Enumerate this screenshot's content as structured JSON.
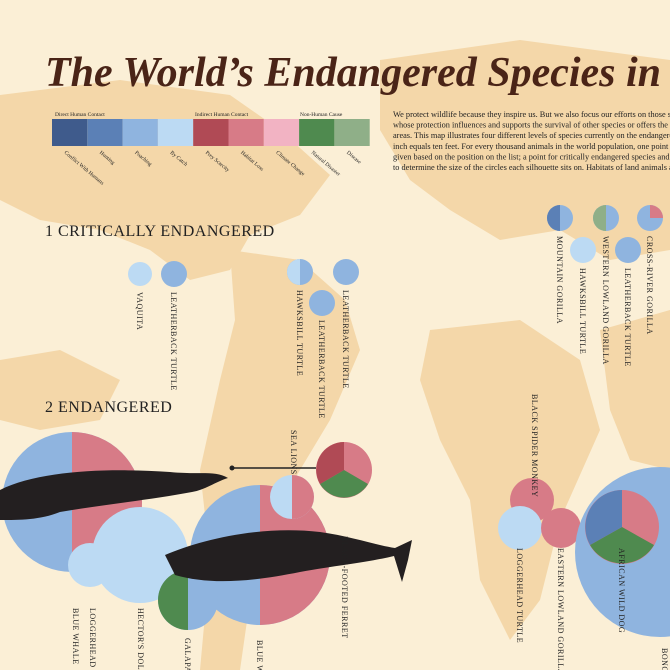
{
  "title": "The World’s Endangered Species in Fo",
  "legend": {
    "groups": [
      "Direct Human Contact",
      "Indirect Human Contact",
      "Non-Human Cause"
    ],
    "items": [
      {
        "label": "Conflict With Humans",
        "color": "#3f5b8c"
      },
      {
        "label": "Hunting",
        "color": "#5b80b6"
      },
      {
        "label": "Poaching",
        "color": "#8fb4df"
      },
      {
        "label": "By Catch",
        "color": "#bcdaf3"
      },
      {
        "label": "Prey Scarcity",
        "color": "#b04a55"
      },
      {
        "label": "Habitat Loss",
        "color": "#d77b87"
      },
      {
        "label": "Climate Change",
        "color": "#f2b3c3"
      },
      {
        "label": "Natural Disaster",
        "color": "#4f8a4f"
      },
      {
        "label": "Disease",
        "color": "#8faf88"
      }
    ]
  },
  "description": [
    "We protect wildlife because they inspire us. But we also focus our efforts on those species",
    "whose protection influences and supports the survival of other species or offers the oppo",
    "areas. This map illustrates four different levels of species currently on the endangered list.",
    "inch equals ten feet.  For every thousand animals in the world population, one point was a",
    "given based on the position on the list; a point  for critically endangered species and two",
    "to determine the size of the circles each silhouette sits on. Habitats of land animals are pin"
  ],
  "sections": [
    {
      "heading": "1 CRITICALLY ENDANGERED",
      "species": [
        "VAQUITA",
        "LEATHERBACK TURTLE",
        "HAWKSBILL TURTLE",
        "LEATHERBACK TURTLE",
        "LEATHERBACK TURTLE",
        "MOUNTAIN GORILLA",
        "HAWKSBILL TURTLE",
        "WESTERN LOWLAND GORILLA",
        "LEATHERBACK TURTLE",
        "CROSS-RIVER GORILLA"
      ]
    },
    {
      "heading": "2 ENDANGERED",
      "species": [
        "SEA LIONS",
        "BLUE WHALE",
        "LOGGERHEAD TURTLE",
        "HECTOR'S DOLPHIN",
        "GALAPAGOS",
        "BLUE WHALE",
        "BLACK-FOOTED FERRET",
        "BLACK SPIDER MONKEY",
        "LOGGERHEAD TURTLE",
        "EASTERN LOWLAND GORILLA",
        "AFRICAN WILD DOG",
        "BONOBO"
      ]
    }
  ]
}
